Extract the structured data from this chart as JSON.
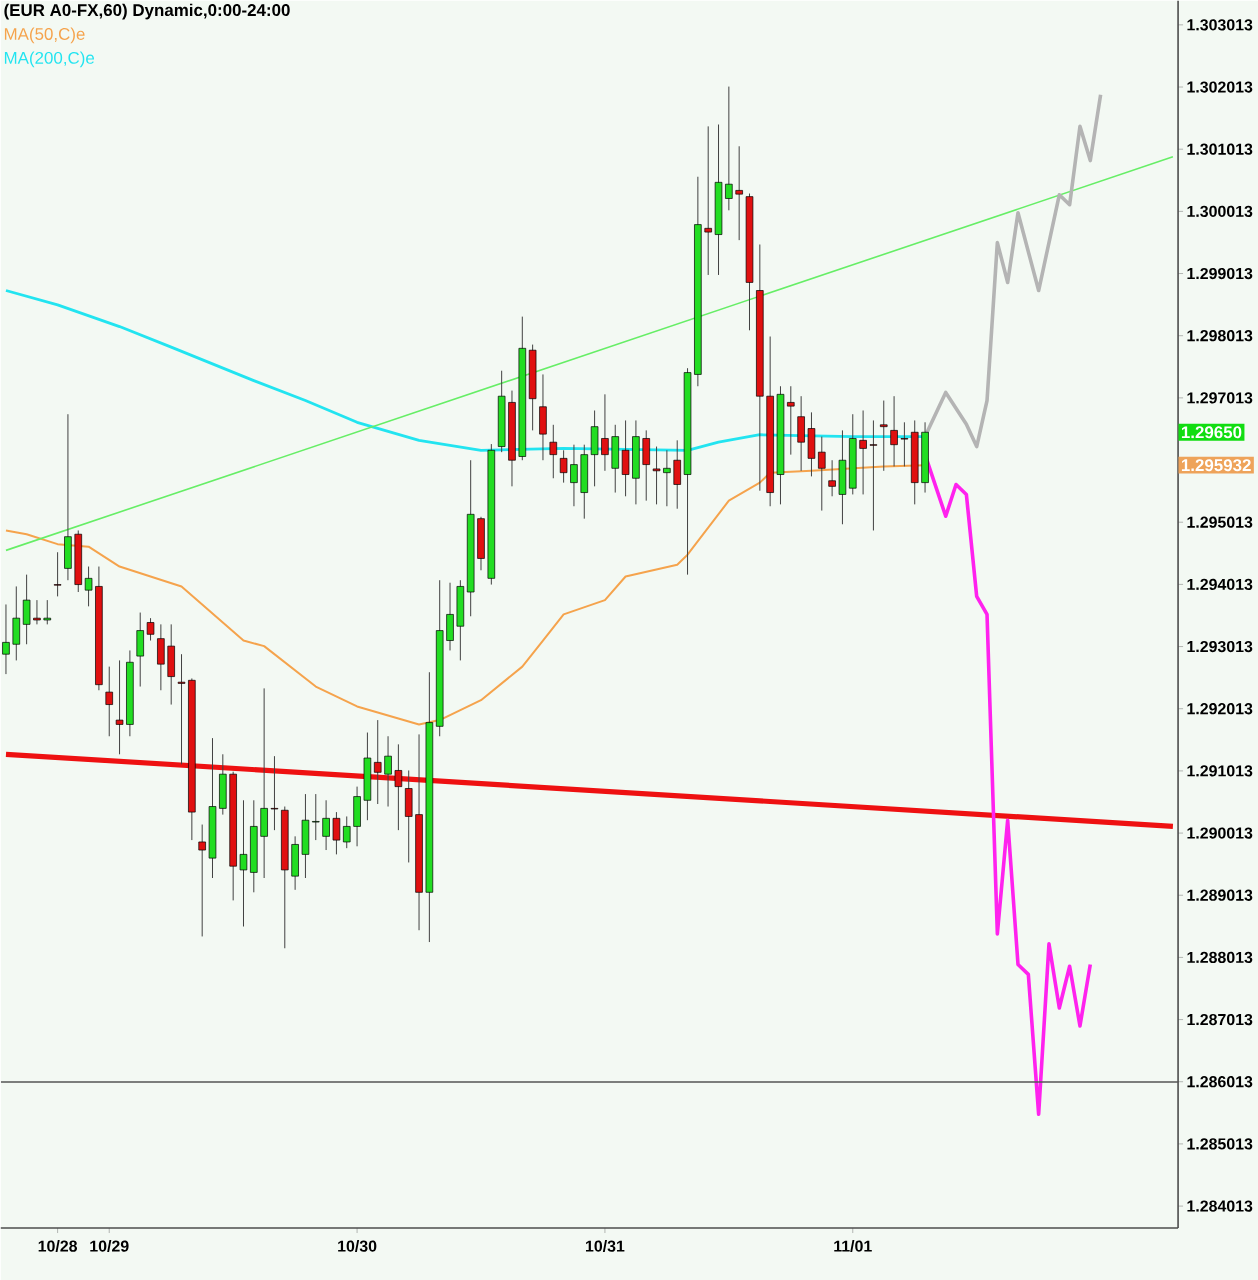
{
  "chart_data": {
    "type": "candlestick",
    "title": "(EUR A0-FX,60) Dynamic,0:00-24:00",
    "categories": [
      null,
      null,
      null,
      null,
      null,
      "10/28",
      null,
      null,
      null,
      null,
      "10/29",
      null,
      null,
      null,
      null,
      null,
      null,
      null,
      null,
      null,
      null,
      null,
      null,
      null,
      null,
      null,
      null,
      null,
      null,
      null,
      null,
      null,
      null,
      null,
      "10/30",
      null,
      null,
      null,
      null,
      null,
      null,
      null,
      null,
      null,
      null,
      null,
      null,
      null,
      null,
      null,
      null,
      null,
      null,
      null,
      null,
      null,
      null,
      null,
      "10/31",
      null,
      null,
      null,
      null,
      null,
      null,
      null,
      null,
      null,
      null,
      null,
      null,
      null,
      null,
      null,
      null,
      null,
      null,
      null,
      null,
      null,
      null,
      null,
      "11/01",
      null,
      null,
      null,
      null,
      null,
      null,
      null,
      null,
      null,
      null,
      null,
      null,
      null,
      null,
      null,
      null,
      null,
      null,
      null,
      null,
      null,
      null,
      null,
      null,
      null,
      null,
      null,
      null,
      null,
      null,
      null
    ],
    "ohlc": [
      [
        1.29289,
        1.29369,
        1.29257,
        1.29308
      ],
      [
        1.29305,
        1.29398,
        1.29279,
        1.29347
      ],
      [
        1.29337,
        1.29417,
        1.29305,
        1.29376
      ],
      [
        1.29347,
        1.29376,
        1.29337,
        1.29344
      ],
      [
        1.29344,
        1.29376,
        1.29337,
        1.29347
      ],
      [
        1.29401,
        1.29453,
        1.29382,
        1.294
      ],
      [
        1.29427,
        1.29675,
        1.29408,
        1.29478
      ],
      [
        1.29482,
        1.29488,
        1.29389,
        1.29401
      ],
      [
        1.29392,
        1.2943,
        1.29366,
        1.29411
      ],
      [
        1.29398,
        1.2943,
        1.29231,
        1.2924
      ],
      [
        1.29228,
        1.29269,
        1.29157,
        1.29208
      ],
      [
        1.29183,
        1.29279,
        1.29128,
        1.29176
      ],
      [
        1.29176,
        1.29295,
        1.29157,
        1.29276
      ],
      [
        1.29286,
        1.29356,
        1.29237,
        1.29327
      ],
      [
        1.2934,
        1.29347,
        1.29311,
        1.29321
      ],
      [
        1.29314,
        1.29337,
        1.29231,
        1.29273
      ],
      [
        1.29302,
        1.29337,
        1.29208,
        1.29253
      ],
      [
        1.29244,
        1.29289,
        1.29112,
        1.29242
      ],
      [
        1.29247,
        1.2925,
        1.2899,
        1.29035
      ],
      [
        1.28987,
        1.29015,
        1.28835,
        1.28974
      ],
      [
        1.28961,
        1.29154,
        1.28929,
        1.29044
      ],
      [
        1.29041,
        1.29128,
        1.29031,
        1.29096
      ],
      [
        1.29096,
        1.291,
        1.28893,
        1.28948
      ],
      [
        1.28942,
        1.29054,
        1.28851,
        1.28967
      ],
      [
        1.28938,
        1.29054,
        1.28906,
        1.29012
      ],
      [
        1.28996,
        1.29234,
        1.28929,
        1.29041
      ],
      [
        1.29041,
        1.29125,
        1.29006,
        1.2904
      ],
      [
        1.29038,
        1.29044,
        1.28816,
        1.28942
      ],
      [
        1.28932,
        1.28996,
        1.2891,
        1.28983
      ],
      [
        1.28967,
        1.29064,
        1.28929,
        1.29022
      ],
      [
        1.29019,
        1.29064,
        1.2899,
        1.2902
      ],
      [
        1.28996,
        1.29054,
        1.28974,
        1.29025
      ],
      [
        1.29025,
        1.29035,
        1.28967,
        1.2899
      ],
      [
        1.28987,
        1.29028,
        1.28977,
        1.29012
      ],
      [
        1.29012,
        1.29076,
        1.2898,
        1.2906
      ],
      [
        1.29054,
        1.29163,
        1.29022,
        1.29122
      ],
      [
        1.29115,
        1.29183,
        1.29048,
        1.29099
      ],
      [
        1.29096,
        1.29157,
        1.29044,
        1.29125
      ],
      [
        1.29102,
        1.29144,
        1.29006,
        1.29076
      ],
      [
        1.29073,
        1.29102,
        1.28954,
        1.29028
      ],
      [
        1.29031,
        1.2916,
        1.28845,
        1.28906
      ],
      [
        1.28906,
        1.2926,
        1.28826,
        1.29179
      ],
      [
        1.29173,
        1.29408,
        1.29157,
        1.29327
      ],
      [
        1.29311,
        1.29404,
        1.29295,
        1.29353
      ],
      [
        1.29334,
        1.29408,
        1.29279,
        1.29398
      ],
      [
        1.29389,
        1.29601,
        1.2935,
        1.29514
      ],
      [
        1.29507,
        1.2951,
        1.29424,
        1.29443
      ],
      [
        1.29411,
        1.29627,
        1.29401,
        1.29617
      ],
      [
        1.29623,
        1.29745,
        1.29614,
        1.29704
      ],
      [
        1.29694,
        1.29713,
        1.29559,
        1.29601
      ],
      [
        1.29607,
        1.29832,
        1.29601,
        1.29781
      ],
      [
        1.29778,
        1.29787,
        1.29649,
        1.297
      ],
      [
        1.29687,
        1.29739,
        1.29601,
        1.29643
      ],
      [
        1.2963,
        1.29658,
        1.29572,
        1.2961
      ],
      [
        1.29604,
        1.29617,
        1.29565,
        1.29581
      ],
      [
        1.29565,
        1.29626,
        1.29527,
        1.29594
      ],
      [
        1.29549,
        1.29626,
        1.29507,
        1.2961
      ],
      [
        1.2961,
        1.29681,
        1.29559,
        1.29655
      ],
      [
        1.29636,
        1.29707,
        1.29584,
        1.2961
      ],
      [
        1.29588,
        1.29658,
        1.29549,
        1.29639
      ],
      [
        1.29617,
        1.29665,
        1.29543,
        1.29578
      ],
      [
        1.29572,
        1.29665,
        1.2953,
        1.29639
      ],
      [
        1.29636,
        1.29649,
        1.29536,
        1.29594
      ],
      [
        1.29587,
        1.29623,
        1.2953,
        1.29584
      ],
      [
        1.29581,
        1.29617,
        1.29527,
        1.29588
      ],
      [
        1.29601,
        1.29633,
        1.29523,
        1.29562
      ],
      [
        1.29578,
        1.29749,
        1.29417,
        1.29742
      ],
      [
        1.29739,
        1.30057,
        1.2972,
        1.2998
      ],
      [
        1.29974,
        1.30138,
        1.29899,
        1.29968
      ],
      [
        1.29964,
        1.30141,
        1.29899,
        1.30048
      ],
      [
        1.30022,
        1.30202,
        1.30003,
        1.30045
      ],
      [
        1.30035,
        1.30106,
        1.29955,
        1.30029
      ],
      [
        1.30025,
        1.3003,
        1.2981,
        1.29887
      ],
      [
        1.29874,
        1.29948,
        1.29552,
        1.29704
      ],
      [
        1.29704,
        1.298,
        1.29527,
        1.29549
      ],
      [
        1.29578,
        1.2972,
        1.2953,
        1.29707
      ],
      [
        1.29694,
        1.2972,
        1.2961,
        1.29688
      ],
      [
        1.29671,
        1.29704,
        1.29584,
        1.2963
      ],
      [
        1.29652,
        1.29678,
        1.29575,
        1.29604
      ],
      [
        1.29614,
        1.29639,
        1.2952,
        1.29588
      ],
      [
        1.29568,
        1.29601,
        1.29543,
        1.29559
      ],
      [
        1.29546,
        1.29649,
        1.29498,
        1.29601
      ],
      [
        1.29556,
        1.29675,
        1.29546,
        1.29636
      ],
      [
        1.29633,
        1.29681,
        1.29546,
        1.2962
      ],
      [
        1.29626,
        1.29665,
        1.29488,
        1.29625
      ],
      [
        1.29658,
        1.29697,
        1.29584,
        1.29655
      ],
      [
        1.29649,
        1.29704,
        1.29591,
        1.29626
      ],
      [
        1.29636,
        1.29662,
        1.29591,
        1.29635
      ],
      [
        1.29646,
        1.29665,
        1.2953,
        1.29565
      ],
      [
        1.29565,
        1.29662,
        1.29549,
        1.29646
      ],
      null,
      null,
      null,
      null,
      null,
      null,
      null,
      null,
      null,
      null,
      null,
      null,
      null,
      null,
      null,
      null,
      null,
      null,
      null,
      null,
      null,
      null,
      null,
      null
    ],
    "series": [
      {
        "type": "line",
        "name": "MA(50,C)e",
        "color": "#f5a34c",
        "values": [
          1.29488,
          null,
          1.29482,
          null,
          null,
          1.29466,
          null,
          null,
          1.29462,
          null,
          null,
          1.2943,
          null,
          null,
          null,
          null,
          null,
          1.29398,
          null,
          null,
          null,
          null,
          null,
          1.29311,
          null,
          1.29302,
          null,
          null,
          null,
          null,
          1.29237,
          null,
          null,
          null,
          1.29205,
          null,
          null,
          null,
          null,
          null,
          1.29176,
          null,
          1.29183,
          null,
          null,
          null,
          1.29215,
          null,
          null,
          null,
          1.29269,
          null,
          1.29311,
          null,
          1.29353,
          null,
          null,
          null,
          1.29376,
          null,
          1.29414,
          null,
          null,
          null,
          null,
          1.29433,
          1.29449,
          null,
          null,
          null,
          1.29536,
          null,
          null,
          1.29565,
          1.29581,
          null,
          null,
          null,
          1.29584,
          null,
          null,
          null,
          null,
          null,
          null,
          1.29591,
          null,
          null,
          null,
          1.29593,
          null,
          null,
          null,
          null,
          null,
          null,
          null,
          null,
          null,
          null,
          null,
          null,
          null,
          null,
          null,
          null,
          null,
          null,
          null,
          null,
          null,
          null,
          null,
          null
        ]
      },
      {
        "type": "line",
        "name": "MA(200,C)e",
        "color": "#22e4f0",
        "values": [
          1.29874,
          null,
          null,
          null,
          null,
          1.29851,
          null,
          null,
          null,
          null,
          null,
          1.29816,
          null,
          null,
          null,
          null,
          1.29783,
          null,
          null,
          null,
          null,
          null,
          null,
          null,
          1.29729,
          null,
          null,
          null,
          null,
          1.29697,
          null,
          null,
          null,
          null,
          1.29662,
          null,
          null,
          null,
          null,
          null,
          1.29633,
          null,
          null,
          null,
          null,
          null,
          1.29617,
          null,
          null,
          null,
          null,
          null,
          null,
          null,
          1.2962,
          null,
          null,
          null,
          null,
          null,
          null,
          null,
          null,
          null,
          null,
          null,
          1.29617,
          null,
          null,
          1.2963,
          null,
          null,
          null,
          1.29642,
          null,
          null,
          null,
          null,
          null,
          null,
          null,
          null,
          1.29639,
          null,
          null,
          null,
          null,
          null,
          null,
          1.29639,
          null,
          null,
          null,
          null,
          null,
          null,
          null,
          null,
          null,
          null,
          null,
          null,
          null,
          null,
          null,
          null,
          null,
          null,
          null,
          null,
          null,
          null,
          null,
          null
        ]
      },
      {
        "type": "line",
        "color": "#66ee66",
        "values": [
          1.29456,
          null,
          null,
          null,
          null,
          null,
          null,
          null,
          null,
          null,
          null,
          null,
          null,
          null,
          null,
          null,
          null,
          null,
          null,
          null,
          null,
          null,
          null,
          null,
          null,
          null,
          null,
          null,
          null,
          null,
          null,
          null,
          null,
          null,
          null,
          null,
          null,
          null,
          null,
          null,
          null,
          null,
          null,
          null,
          null,
          null,
          null,
          null,
          null,
          null,
          null,
          null,
          null,
          null,
          null,
          null,
          null,
          null,
          null,
          null,
          null,
          null,
          null,
          null,
          null,
          null,
          null,
          null,
          null,
          null,
          null,
          null,
          null,
          null,
          null,
          null,
          null,
          null,
          null,
          null,
          null,
          null,
          null,
          null,
          null,
          null,
          null,
          null,
          null,
          null,
          null,
          null,
          null,
          null,
          null,
          null,
          null,
          null,
          null,
          null,
          null,
          null,
          null,
          null,
          null,
          null,
          null,
          null,
          null,
          null,
          null,
          null,
          null,
          1.30089
        ]
      },
      {
        "type": "line",
        "color": "#ee1111",
        "values": [
          1.29128,
          null,
          null,
          null,
          null,
          null,
          null,
          null,
          null,
          null,
          null,
          null,
          null,
          null,
          null,
          null,
          null,
          null,
          null,
          null,
          null,
          null,
          null,
          null,
          null,
          null,
          null,
          null,
          null,
          null,
          null,
          null,
          null,
          null,
          null,
          null,
          null,
          null,
          null,
          null,
          null,
          null,
          null,
          null,
          null,
          null,
          null,
          null,
          null,
          null,
          null,
          null,
          null,
          null,
          null,
          null,
          null,
          null,
          null,
          null,
          null,
          null,
          null,
          null,
          null,
          null,
          null,
          null,
          null,
          null,
          null,
          null,
          null,
          null,
          null,
          null,
          null,
          null,
          null,
          null,
          null,
          null,
          null,
          null,
          null,
          null,
          null,
          null,
          null,
          null,
          null,
          null,
          null,
          null,
          null,
          null,
          null,
          null,
          null,
          null,
          null,
          null,
          null,
          null,
          null,
          null,
          null,
          null,
          null,
          null,
          null,
          null,
          null,
          1.29012
        ]
      },
      {
        "type": "line",
        "color": "#b4b4b4",
        "values": [
          null,
          null,
          null,
          null,
          null,
          null,
          null,
          null,
          null,
          null,
          null,
          null,
          null,
          null,
          null,
          null,
          null,
          null,
          null,
          null,
          null,
          null,
          null,
          null,
          null,
          null,
          null,
          null,
          null,
          null,
          null,
          null,
          null,
          null,
          null,
          null,
          null,
          null,
          null,
          null,
          null,
          null,
          null,
          null,
          null,
          null,
          null,
          null,
          null,
          null,
          null,
          null,
          null,
          null,
          null,
          null,
          null,
          null,
          null,
          null,
          null,
          null,
          null,
          null,
          null,
          null,
          null,
          null,
          null,
          null,
          null,
          null,
          null,
          null,
          null,
          null,
          null,
          null,
          null,
          null,
          null,
          null,
          null,
          null,
          null,
          null,
          null,
          null,
          null,
          1.29639,
          null,
          1.2971,
          null,
          1.29659,
          1.29623,
          1.29697,
          1.29951,
          1.29887,
          1.29999,
          null,
          1.29874,
          null,
          1.30028,
          1.30012,
          1.30138,
          1.30083,
          1.30189,
          null,
          null,
          null,
          null,
          null,
          null,
          null
        ]
      },
      {
        "type": "line",
        "color": "#ff22ee",
        "values": [
          null,
          null,
          null,
          null,
          null,
          null,
          null,
          null,
          null,
          null,
          null,
          null,
          null,
          null,
          null,
          null,
          null,
          null,
          null,
          null,
          null,
          null,
          null,
          null,
          null,
          null,
          null,
          null,
          null,
          null,
          null,
          null,
          null,
          null,
          null,
          null,
          null,
          null,
          null,
          null,
          null,
          null,
          null,
          null,
          null,
          null,
          null,
          null,
          null,
          null,
          null,
          null,
          null,
          null,
          null,
          null,
          null,
          null,
          null,
          null,
          null,
          null,
          null,
          null,
          null,
          null,
          null,
          null,
          null,
          null,
          null,
          null,
          null,
          null,
          null,
          null,
          null,
          null,
          null,
          null,
          null,
          null,
          null,
          null,
          null,
          null,
          null,
          null,
          null,
          1.2961,
          null,
          1.29511,
          1.29562,
          1.29546,
          1.29382,
          1.29353,
          1.28839,
          1.29022,
          1.2879,
          1.28774,
          1.28549,
          1.28823,
          1.2872,
          1.28787,
          1.28691,
          1.2879,
          null,
          null,
          null,
          null,
          null,
          null,
          null,
          null
        ]
      }
    ],
    "ylim": [
      1.28366,
      1.3034
    ],
    "yticks": [
      1.284013,
      1.285013,
      1.286013,
      1.287013,
      1.288013,
      1.289013,
      1.290013,
      1.291013,
      1.292013,
      1.293013,
      1.294013,
      1.295013,
      {
        "value": 1.296013,
        "label": null
      },
      1.297013,
      1.298013,
      1.299013,
      1.300013,
      1.301013,
      1.302013,
      1.303013
    ],
    "ref_lines": [
      {
        "axis": "y",
        "value": 1.28601,
        "color": "#555555"
      }
    ],
    "annotations": [
      "1.29650",
      "1.295932"
    ],
    "legend": "top left"
  }
}
